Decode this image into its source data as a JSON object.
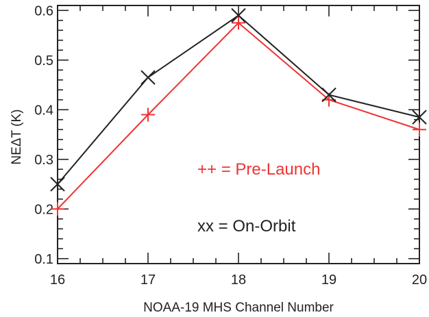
{
  "chart_data": {
    "type": "line",
    "xlabel": "NOAA-19 MHS Channel Number",
    "ylabel": "NEΔT (K)",
    "x": [
      16,
      17,
      18,
      19,
      20
    ],
    "xlim": [
      16,
      20
    ],
    "ylim": [
      0.09,
      0.61
    ],
    "xticks": [
      16,
      17,
      18,
      19,
      20
    ],
    "yticks": [
      0.1,
      0.2,
      0.3,
      0.4,
      0.5,
      0.6
    ],
    "ytick_labels": [
      "0.1",
      "0.2",
      "0.3",
      "0.4",
      "0.5",
      "0.6"
    ],
    "series": [
      {
        "name": "On-Orbit",
        "marker": "x",
        "color": "#222222",
        "values": [
          0.25,
          0.465,
          0.59,
          0.43,
          0.385
        ]
      },
      {
        "name": "Pre-Launch",
        "marker": "+",
        "color": "#ee3333",
        "values": [
          0.2,
          0.39,
          0.575,
          0.42,
          0.36
        ]
      }
    ],
    "annotations": [
      {
        "text": "++ = Pre-Launch",
        "color": "#ee3333"
      },
      {
        "text": "xx = On-Orbit",
        "color": "#222222"
      }
    ],
    "grid": false,
    "legend": "inside-center-right"
  }
}
